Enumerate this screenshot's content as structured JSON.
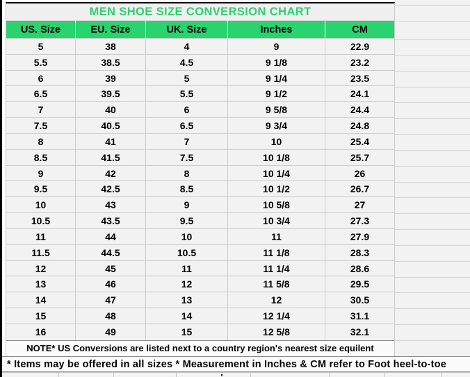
{
  "colors": {
    "accent_green": "#29d36e",
    "cell_bg": "#f2f2f2",
    "gridline": "#cbcbcb",
    "note_bg": "#fbfbfb",
    "dark_line": "#8a8a8a"
  },
  "chart_data": {
    "type": "table",
    "title": "MEN SHOE SIZE CONVERSION CHART",
    "columns": [
      "US. Size",
      "EU. Size",
      "UK. Size",
      "Inches",
      "CM"
    ],
    "rows": [
      [
        "5",
        "38",
        "4",
        "9",
        "22.9"
      ],
      [
        "5.5",
        "38.5",
        "4.5",
        "9 1/8",
        "23.2"
      ],
      [
        "6",
        "39",
        "5",
        "9 1/4",
        "23.5"
      ],
      [
        "6.5",
        "39.5",
        "5.5",
        "9 1/2",
        "24.1"
      ],
      [
        "7",
        "40",
        "6",
        "9 5/8",
        "24.4"
      ],
      [
        "7.5",
        "40.5",
        "6.5",
        "9 3/4",
        "24.8"
      ],
      [
        "8",
        "41",
        "7",
        "10",
        "25.4"
      ],
      [
        "8.5",
        "41.5",
        "7.5",
        "10 1/8",
        "25.7"
      ],
      [
        "9",
        "42",
        "8",
        "10 1/4",
        "26"
      ],
      [
        "9.5",
        "42.5",
        "8.5",
        "10 1/2",
        "26.7"
      ],
      [
        "10",
        "43",
        "9",
        "10 5/8",
        "27"
      ],
      [
        "10.5",
        "43.5",
        "9.5",
        "10 3/4",
        "27.3"
      ],
      [
        "11",
        "44",
        "10",
        "11",
        "27.9"
      ],
      [
        "11.5",
        "44.5",
        "10.5",
        "11 1/8",
        "28.3"
      ],
      [
        "12",
        "45",
        "11",
        "11 1/4",
        "28.6"
      ],
      [
        "13",
        "46",
        "12",
        "11 5/8",
        "29.5"
      ],
      [
        "14",
        "47",
        "13",
        "12",
        "30.5"
      ],
      [
        "15",
        "48",
        "14",
        "12 1/4",
        "31.1"
      ],
      [
        "16",
        "49",
        "15",
        "12 5/8",
        "32.1"
      ]
    ],
    "notes": [
      "NOTE* US Conversions are listed next to a country region's nearest size equilent",
      "* Items may be offered in all sizes * Measurement in Inches & CM refer to Foot heel-to-toe"
    ]
  }
}
